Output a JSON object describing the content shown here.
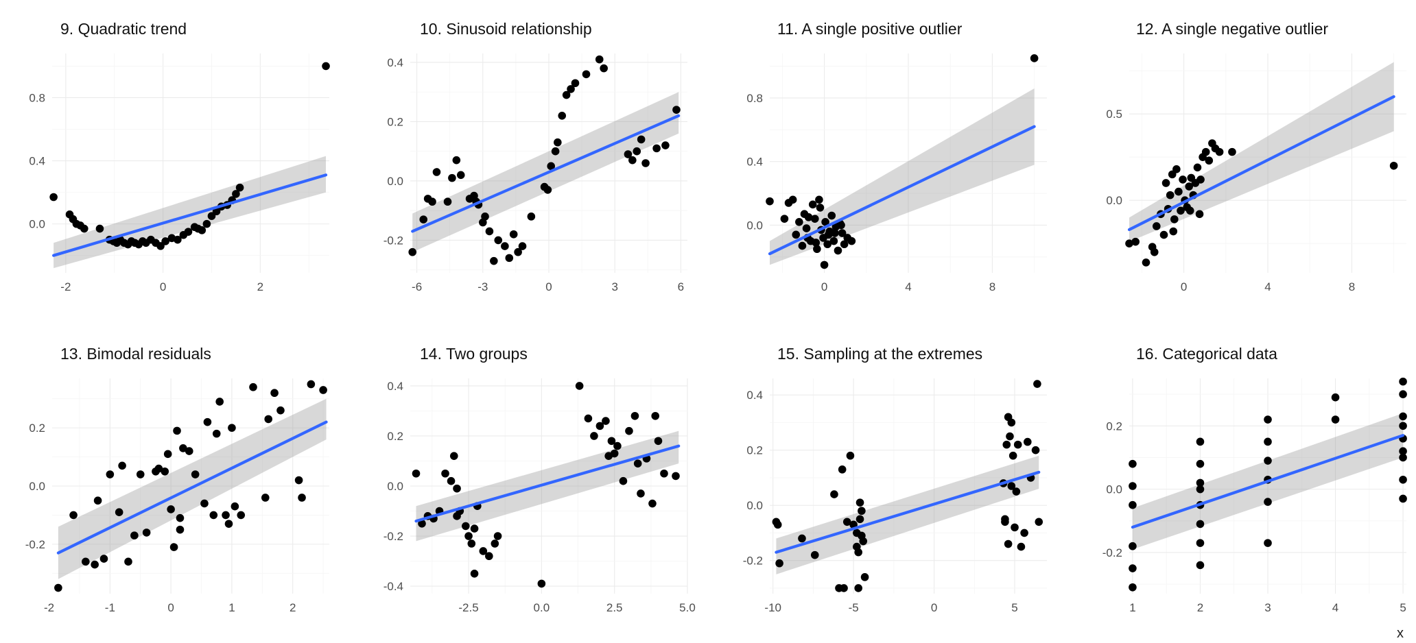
{
  "figure": {
    "xlabel": "x"
  },
  "chart_data": [
    {
      "type": "scatter",
      "title": "9. Quadratic trend",
      "xlim": [
        -2.28,
        3.42
      ],
      "ylim": [
        -0.31,
        1.08
      ],
      "xticks": [
        -2,
        0,
        2
      ],
      "xtick_labels": [
        "-2",
        "0",
        "2"
      ],
      "yticks": [
        0.0,
        0.4,
        0.8
      ],
      "ytick_labels": [
        "0.0",
        "0.4",
        "0.8"
      ],
      "fit": {
        "x": [
          -2.25,
          3.35
        ],
        "y": [
          -0.2,
          0.31
        ],
        "band_lo": [
          -0.28,
          0.2
        ],
        "band_hi": [
          -0.12,
          0.43
        ]
      },
      "x": [
        -2.25,
        -1.92,
        -1.85,
        -1.78,
        -1.7,
        -1.62,
        -1.3,
        -1.1,
        -1.02,
        -0.95,
        -0.88,
        -0.8,
        -0.72,
        -0.65,
        -0.58,
        -0.5,
        -0.42,
        -0.35,
        -0.25,
        -0.15,
        -0.05,
        0.05,
        0.18,
        0.3,
        0.42,
        0.52,
        0.65,
        0.72,
        0.8,
        0.9,
        1.0,
        1.1,
        1.2,
        1.32,
        1.42,
        1.5,
        1.58,
        3.35
      ],
      "y": [
        0.17,
        0.06,
        0.03,
        0.0,
        -0.01,
        -0.03,
        -0.03,
        -0.1,
        -0.11,
        -0.12,
        -0.1,
        -0.12,
        -0.13,
        -0.11,
        -0.12,
        -0.13,
        -0.11,
        -0.12,
        -0.1,
        -0.12,
        -0.14,
        -0.11,
        -0.09,
        -0.1,
        -0.07,
        -0.05,
        -0.02,
        -0.03,
        -0.04,
        0.0,
        0.05,
        0.08,
        0.11,
        0.12,
        0.15,
        0.19,
        0.23,
        1.0
      ]
    },
    {
      "type": "scatter",
      "title": "10. Sinusoid relationship",
      "xlim": [
        -6.3,
        6.3
      ],
      "ylim": [
        -0.31,
        0.43
      ],
      "xticks": [
        -6,
        -3,
        0,
        3,
        6
      ],
      "xtick_labels": [
        "-6",
        "-3",
        "0",
        "3",
        "6"
      ],
      "yticks": [
        -0.2,
        0.0,
        0.2,
        0.4
      ],
      "ytick_labels": [
        "-0.2",
        "0.0",
        "0.2",
        "0.4"
      ],
      "fit": {
        "x": [
          -6.2,
          5.9
        ],
        "y": [
          -0.17,
          0.22
        ],
        "band_lo": [
          -0.24,
          0.16
        ],
        "band_hi": [
          -0.11,
          0.3
        ]
      },
      "x": [
        -6.2,
        -5.7,
        -5.5,
        -5.3,
        -5.1,
        -4.6,
        -4.4,
        -4.2,
        -4.0,
        -3.6,
        -3.4,
        -3.3,
        -3.2,
        -3.0,
        -2.9,
        -2.7,
        -2.5,
        -2.3,
        -2.0,
        -1.8,
        -1.6,
        -1.4,
        -1.2,
        -0.8,
        -0.2,
        -0.05,
        0.1,
        0.3,
        0.4,
        0.6,
        0.8,
        1.0,
        1.2,
        1.7,
        2.3,
        2.5,
        3.6,
        3.8,
        4.0,
        4.2,
        4.4,
        4.9,
        5.3,
        5.8
      ],
      "y": [
        -0.24,
        -0.13,
        -0.06,
        -0.07,
        0.03,
        -0.07,
        0.01,
        0.07,
        0.02,
        -0.06,
        -0.05,
        -0.07,
        -0.08,
        -0.14,
        -0.12,
        -0.17,
        -0.27,
        -0.2,
        -0.22,
        -0.26,
        -0.18,
        -0.24,
        -0.22,
        -0.12,
        -0.02,
        -0.03,
        0.05,
        0.1,
        0.13,
        0.22,
        0.29,
        0.31,
        0.33,
        0.36,
        0.41,
        0.38,
        0.09,
        0.07,
        0.1,
        0.14,
        0.06,
        0.11,
        0.12,
        0.24
      ]
    },
    {
      "type": "scatter",
      "title": "11. A single positive outlier",
      "xlim": [
        -2.6,
        10.6
      ],
      "ylim": [
        -0.3,
        1.08
      ],
      "xticks": [
        0,
        4,
        8
      ],
      "xtick_labels": [
        "0",
        "4",
        "8"
      ],
      "yticks": [
        0.0,
        0.4,
        0.8
      ],
      "ytick_labels": [
        "0.0",
        "0.4",
        "0.8"
      ],
      "fit": {
        "x": [
          -2.6,
          10.0
        ],
        "y": [
          -0.18,
          0.62
        ],
        "band_lo": [
          -0.25,
          0.38
        ],
        "band_hi": [
          -0.1,
          0.86
        ]
      },
      "x": [
        -2.6,
        -1.9,
        -1.7,
        -1.5,
        -1.35,
        -1.2,
        -1.05,
        -0.95,
        -0.85,
        -0.75,
        -0.65,
        -0.55,
        -0.45,
        -0.35,
        -0.25,
        -0.15,
        -0.05,
        0.05,
        0.15,
        0.25,
        0.35,
        0.45,
        0.55,
        0.65,
        0.75,
        0.85,
        0.95,
        1.1,
        1.3,
        0.0,
        0.2,
        -0.4,
        -0.8,
        0.5,
        0.8,
        -0.2,
        10.0
      ],
      "y": [
        0.15,
        0.04,
        0.14,
        0.16,
        -0.06,
        0.02,
        -0.13,
        0.07,
        -0.02,
        0.05,
        -0.1,
        0.13,
        0.04,
        -0.15,
        0.16,
        -0.03,
        -0.08,
        0.02,
        -0.12,
        -0.04,
        0.06,
        -0.1,
        -0.01,
        -0.16,
        0.01,
        -0.05,
        -0.12,
        -0.08,
        -0.1,
        -0.25,
        -0.06,
        -0.11,
        -0.08,
        -0.05,
        0.0,
        0.11,
        1.05
      ]
    },
    {
      "type": "scatter",
      "title": "12. A single negative outlier",
      "xlim": [
        -2.6,
        10.6
      ],
      "ylim": [
        -0.42,
        0.85
      ],
      "xticks": [
        0,
        4,
        8
      ],
      "xtick_labels": [
        "0",
        "4",
        "8"
      ],
      "yticks": [
        0.0,
        0.5
      ],
      "ytick_labels": [
        "0.0",
        "0.5"
      ],
      "fit": {
        "x": [
          -2.6,
          10.0
        ],
        "y": [
          -0.17,
          0.6
        ],
        "band_lo": [
          -0.24,
          0.4
        ],
        "band_hi": [
          -0.1,
          0.8
        ]
      },
      "x": [
        -2.6,
        -2.3,
        -1.8,
        -1.5,
        -1.3,
        -1.1,
        -0.95,
        -0.85,
        -0.75,
        -0.65,
        -0.55,
        -0.45,
        -0.35,
        -0.25,
        -0.15,
        -0.05,
        0.05,
        0.15,
        0.25,
        0.35,
        0.45,
        0.55,
        0.65,
        0.75,
        0.9,
        1.05,
        1.2,
        1.35,
        1.5,
        1.7,
        2.3,
        -0.5,
        0.3,
        -1.4,
        0.8,
        10.0
      ],
      "y": [
        -0.25,
        -0.24,
        -0.36,
        -0.27,
        -0.15,
        -0.08,
        -0.2,
        0.1,
        -0.05,
        0.03,
        0.15,
        -0.11,
        0.18,
        0.05,
        -0.06,
        0.12,
        0.0,
        -0.04,
        0.08,
        0.13,
        0.03,
        0.1,
        0.19,
        -0.08,
        0.25,
        0.28,
        0.23,
        0.33,
        0.3,
        0.28,
        0.28,
        -0.18,
        -0.06,
        -0.3,
        0.12,
        0.2
      ]
    },
    {
      "type": "scatter",
      "title": "13. Bimodal residuals",
      "xlim": [
        -1.95,
        2.6
      ],
      "ylim": [
        -0.37,
        0.37
      ],
      "xticks": [
        -2,
        -1,
        0,
        1,
        2
      ],
      "xtick_labels": [
        "-2",
        "-1",
        "0",
        "1",
        "2"
      ],
      "yticks": [
        -0.2,
        0.0,
        0.2
      ],
      "ytick_labels": [
        "-0.2",
        "0.0",
        "0.2"
      ],
      "fit": {
        "x": [
          -1.85,
          2.55
        ],
        "y": [
          -0.23,
          0.22
        ],
        "band_lo": [
          -0.32,
          0.16
        ],
        "band_hi": [
          -0.14,
          0.3
        ]
      },
      "x": [
        -1.85,
        -1.6,
        -1.4,
        -1.25,
        -1.2,
        -1.1,
        -1.0,
        -0.85,
        -0.8,
        -0.7,
        -0.6,
        -0.5,
        -0.4,
        -0.25,
        -0.2,
        -0.1,
        -0.05,
        0.05,
        0.1,
        0.15,
        0.2,
        0.3,
        0.4,
        0.55,
        0.6,
        0.7,
        0.75,
        0.8,
        0.9,
        0.95,
        1.0,
        1.05,
        1.15,
        1.35,
        1.55,
        1.6,
        1.7,
        1.8,
        2.1,
        2.15,
        2.3,
        2.5,
        0.0,
        0.15
      ],
      "y": [
        -0.35,
        -0.1,
        -0.26,
        -0.27,
        -0.05,
        -0.25,
        0.04,
        -0.09,
        0.07,
        -0.26,
        -0.17,
        0.04,
        -0.16,
        0.05,
        0.06,
        0.05,
        0.11,
        -0.21,
        0.19,
        -0.11,
        0.13,
        0.12,
        0.04,
        -0.06,
        0.22,
        -0.1,
        0.18,
        0.29,
        -0.1,
        -0.13,
        0.2,
        -0.07,
        -0.1,
        0.34,
        -0.04,
        0.23,
        0.32,
        0.26,
        0.02,
        -0.04,
        0.35,
        0.33,
        -0.08,
        -0.15
      ]
    },
    {
      "type": "scatter",
      "title": "14. Two groups",
      "xlim": [
        -4.5,
        5.0
      ],
      "ylim": [
        -0.43,
        0.43
      ],
      "xticks": [
        -2.5,
        0.0,
        2.5,
        5.0
      ],
      "xtick_labels": [
        "-2.5",
        "0.0",
        "2.5",
        "5.0"
      ],
      "yticks": [
        -0.4,
        -0.2,
        0.0,
        0.2,
        0.4
      ],
      "ytick_labels": [
        "-0.4",
        "-0.2",
        "0.0",
        "0.2",
        "0.4"
      ],
      "fit": {
        "x": [
          -4.3,
          4.7
        ],
        "y": [
          -0.14,
          0.16
        ],
        "band_lo": [
          -0.22,
          0.09
        ],
        "band_hi": [
          -0.08,
          0.22
        ]
      },
      "x": [
        -4.3,
        -4.1,
        -3.9,
        -3.7,
        -3.5,
        -3.3,
        -3.1,
        -3.0,
        -2.9,
        -2.8,
        -2.6,
        -2.5,
        -2.4,
        -2.3,
        -2.2,
        -2.0,
        -1.8,
        -1.6,
        -1.5,
        -0.0,
        1.3,
        1.6,
        1.8,
        2.0,
        2.2,
        2.3,
        2.4,
        2.5,
        2.6,
        2.8,
        3.0,
        3.2,
        3.4,
        3.6,
        3.8,
        3.9,
        4.0,
        4.2,
        4.6,
        -2.9,
        -2.3,
        3.3
      ],
      "y": [
        0.05,
        -0.15,
        -0.12,
        -0.13,
        -0.1,
        0.05,
        0.02,
        0.12,
        -0.12,
        -0.1,
        -0.16,
        -0.2,
        -0.23,
        -0.17,
        -0.08,
        -0.26,
        -0.28,
        -0.23,
        -0.2,
        -0.39,
        0.4,
        0.27,
        0.2,
        0.24,
        0.26,
        0.12,
        0.18,
        0.13,
        0.16,
        0.02,
        0.22,
        0.28,
        -0.03,
        0.11,
        -0.07,
        0.28,
        0.18,
        0.05,
        0.04,
        -0.01,
        -0.35,
        0.09
      ]
    },
    {
      "type": "scatter",
      "title": "15. Sampling at the extremes",
      "xlim": [
        -10.2,
        7.0
      ],
      "ylim": [
        -0.32,
        0.46
      ],
      "xticks": [
        -10,
        -5,
        0,
        5
      ],
      "xtick_labels": [
        "-10",
        "-5",
        "0",
        "5"
      ],
      "yticks": [
        -0.2,
        0.0,
        0.2,
        0.4
      ],
      "ytick_labels": [
        "-0.2",
        "0.0",
        "0.2",
        "0.4"
      ],
      "fit": {
        "x": [
          -9.8,
          6.5
        ],
        "y": [
          -0.17,
          0.12
        ],
        "band_lo": [
          -0.25,
          0.06
        ],
        "band_hi": [
          -0.12,
          0.18
        ]
      },
      "x": [
        -9.8,
        -9.7,
        -9.6,
        -8.2,
        -7.4,
        -6.2,
        -5.9,
        -5.7,
        -5.4,
        -5.2,
        -5.0,
        -4.8,
        -4.7,
        -4.6,
        -4.5,
        -4.4,
        -4.3,
        -4.6,
        -4.5,
        -4.7,
        4.3,
        4.4,
        4.5,
        4.6,
        4.7,
        4.8,
        4.9,
        5.0,
        5.1,
        5.2,
        5.4,
        5.6,
        5.8,
        6.0,
        6.3,
        6.4,
        6.5,
        4.4,
        4.6,
        4.8,
        -5.6,
        -4.8
      ],
      "y": [
        -0.06,
        -0.07,
        -0.21,
        -0.12,
        -0.18,
        0.04,
        -0.3,
        0.13,
        -0.06,
        0.18,
        -0.07,
        -0.15,
        -0.17,
        -0.05,
        -0.11,
        -0.13,
        -0.26,
        0.01,
        -0.02,
        -0.3,
        0.08,
        -0.05,
        0.22,
        0.32,
        0.25,
        0.3,
        0.18,
        -0.08,
        0.05,
        0.22,
        -0.15,
        -0.1,
        0.23,
        0.1,
        0.2,
        0.44,
        -0.06,
        -0.06,
        -0.14,
        0.07,
        -0.3,
        -0.1
      ]
    },
    {
      "type": "scatter",
      "title": "16. Categorical data",
      "xlim": [
        0.95,
        5.05
      ],
      "ylim": [
        -0.33,
        0.35
      ],
      "xticks": [
        1,
        2,
        3,
        4,
        5
      ],
      "xtick_labels": [
        "1",
        "2",
        "3",
        "4",
        "5"
      ],
      "yticks": [
        -0.2,
        0.0,
        0.2
      ],
      "ytick_labels": [
        "-0.2",
        "0.0",
        "0.2"
      ],
      "fit": {
        "x": [
          1.0,
          5.0
        ],
        "y": [
          -0.12,
          0.17
        ],
        "band_lo": [
          -0.19,
          0.1
        ],
        "band_hi": [
          -0.06,
          0.24
        ]
      },
      "x": [
        1,
        1,
        1,
        1,
        1,
        1,
        2,
        2,
        2,
        2,
        2,
        2,
        2,
        2,
        3,
        3,
        3,
        3,
        3,
        3,
        4,
        4,
        5,
        5,
        5,
        5,
        5,
        5,
        5,
        5,
        5
      ],
      "y": [
        0.08,
        0.01,
        -0.05,
        -0.18,
        -0.25,
        -0.31,
        0.15,
        0.08,
        0.02,
        -0.05,
        -0.11,
        -0.17,
        -0.24,
        0.0,
        0.22,
        0.15,
        0.09,
        -0.04,
        -0.17,
        0.03,
        0.29,
        0.22,
        0.34,
        0.3,
        0.23,
        0.16,
        0.1,
        0.03,
        -0.03,
        0.2,
        0.12
      ]
    }
  ]
}
